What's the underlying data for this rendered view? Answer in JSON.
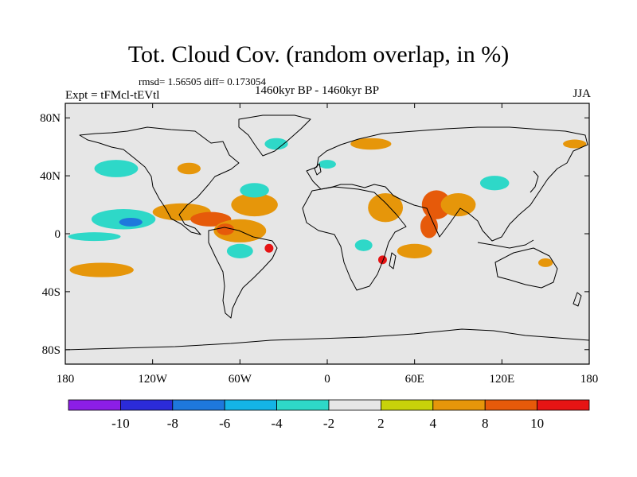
{
  "header": {
    "title": "Tot. Cloud Cov. (random overlap, in %)",
    "stats": "rmsd= 1.56505 diff= 0.173054",
    "experiment": "Expt = tFMcl-tEVtl",
    "period": "1460kyr BP - 1460kyr BP",
    "season": "JJA"
  },
  "map": {
    "lat_ticks": [
      "80N",
      "40N",
      "0",
      "40S",
      "80S"
    ],
    "lat_values": [
      80,
      40,
      0,
      -40,
      -80
    ],
    "lon_ticks": [
      "180",
      "120W",
      "60W",
      "0",
      "60E",
      "120E",
      "180"
    ],
    "lon_values": [
      -180,
      -120,
      -60,
      0,
      60,
      120,
      180
    ],
    "lat_range": [
      -90,
      90
    ],
    "lon_range": [
      -180,
      180
    ],
    "background_color": "#e6e6e6"
  },
  "colorbar": {
    "labels": [
      "-10",
      "-8",
      "-6",
      "-4",
      "-2",
      "2",
      "4",
      "8",
      "10"
    ],
    "colors": [
      "#8c1ee6",
      "#2b2bd9",
      "#1e78dc",
      "#14b4e6",
      "#2ed8c8",
      "#e6e6e6",
      "#c8d20a",
      "#e6960a",
      "#e65a0a",
      "#e61414"
    ]
  },
  "chart_data": {
    "type": "heatmap",
    "title": "Tot. Cloud Cov. (random overlap, in %)",
    "levels": [
      -10,
      -8,
      -6,
      -4,
      -2,
      2,
      4,
      8,
      10
    ],
    "features": [
      {
        "lon": -140,
        "lat": 10,
        "rx": 22,
        "ry": 7,
        "level": -4
      },
      {
        "lon": -135,
        "lat": 8,
        "rx": 8,
        "ry": 3,
        "level": -8
      },
      {
        "lon": -160,
        "lat": -2,
        "rx": 18,
        "ry": 3,
        "level": -4
      },
      {
        "lon": -145,
        "lat": 45,
        "rx": 15,
        "ry": 6,
        "level": -4
      },
      {
        "lon": -100,
        "lat": 15,
        "rx": 20,
        "ry": 6,
        "level": 4
      },
      {
        "lon": -80,
        "lat": 10,
        "rx": 14,
        "ry": 5,
        "level": 8
      },
      {
        "lon": -60,
        "lat": 2,
        "rx": 18,
        "ry": 8,
        "level": 4
      },
      {
        "lon": -70,
        "lat": 3,
        "rx": 6,
        "ry": 4,
        "level": 8
      },
      {
        "lon": -50,
        "lat": 20,
        "rx": 16,
        "ry": 8,
        "level": 4
      },
      {
        "lon": -40,
        "lat": -10,
        "rx": 3,
        "ry": 3,
        "level": 10
      },
      {
        "lon": -60,
        "lat": -12,
        "rx": 9,
        "ry": 5,
        "level": -4
      },
      {
        "lon": -155,
        "lat": -25,
        "rx": 22,
        "ry": 5,
        "level": 4
      },
      {
        "lon": -35,
        "lat": 62,
        "rx": 8,
        "ry": 4,
        "level": -4
      },
      {
        "lon": 40,
        "lat": 18,
        "rx": 12,
        "ry": 10,
        "level": 4
      },
      {
        "lon": 75,
        "lat": 20,
        "rx": 10,
        "ry": 10,
        "level": 8
      },
      {
        "lon": 90,
        "lat": 20,
        "rx": 12,
        "ry": 8,
        "level": 4
      },
      {
        "lon": 70,
        "lat": 5,
        "rx": 6,
        "ry": 8,
        "level": 8
      },
      {
        "lon": 25,
        "lat": -8,
        "rx": 6,
        "ry": 4,
        "level": -4
      },
      {
        "lon": 38,
        "lat": -18,
        "rx": 3,
        "ry": 3,
        "level": 10
      },
      {
        "lon": 115,
        "lat": 35,
        "rx": 10,
        "ry": 5,
        "level": -4
      },
      {
        "lon": 30,
        "lat": 62,
        "rx": 14,
        "ry": 4,
        "level": 4
      },
      {
        "lon": -50,
        "lat": 30,
        "rx": 10,
        "ry": 5,
        "level": -4
      },
      {
        "lon": 0,
        "lat": 48,
        "rx": 6,
        "ry": 3,
        "level": -4
      },
      {
        "lon": 150,
        "lat": -20,
        "rx": 5,
        "ry": 3,
        "level": 4
      },
      {
        "lon": 170,
        "lat": 62,
        "rx": 8,
        "ry": 3,
        "level": 4
      },
      {
        "lon": 60,
        "lat": -12,
        "rx": 12,
        "ry": 5,
        "level": 4
      },
      {
        "lon": -95,
        "lat": 45,
        "rx": 8,
        "ry": 4,
        "level": 4
      }
    ]
  }
}
